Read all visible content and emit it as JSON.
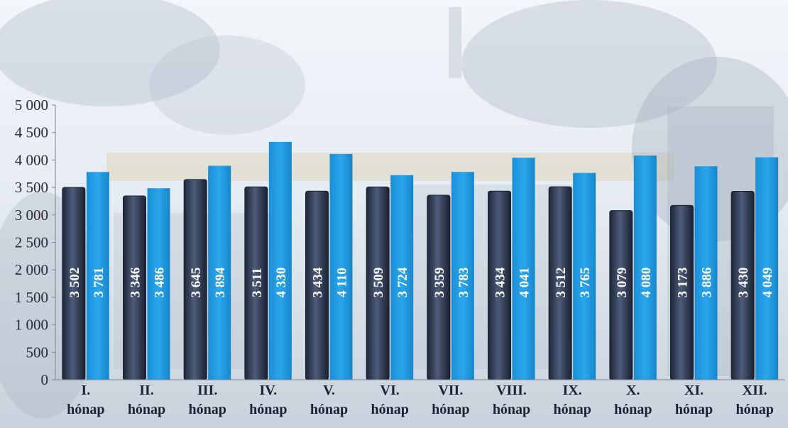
{
  "chart_data": {
    "type": "bar",
    "title": "",
    "xlabel": "",
    "ylabel": "",
    "ylim": [
      0,
      5000
    ],
    "y_ticks": [
      "0",
      "500",
      "1 000",
      "1 500",
      "2 000",
      "2 500",
      "3 000",
      "3 500",
      "4 000",
      "4 500",
      "5 000"
    ],
    "y_tick_values": [
      0,
      500,
      1000,
      1500,
      2000,
      2500,
      3000,
      3500,
      4000,
      4500,
      5000
    ],
    "categories": [
      [
        "I.",
        "hónap"
      ],
      [
        "II.",
        "hónap"
      ],
      [
        "III.",
        "hónap"
      ],
      [
        "IV.",
        "hónap"
      ],
      [
        "V.",
        "hónap"
      ],
      [
        "VI.",
        "hónap"
      ],
      [
        "VII.",
        "hónap"
      ],
      [
        "VIII.",
        "hónap"
      ],
      [
        "IX.",
        "hónap"
      ],
      [
        "X.",
        "hónap"
      ],
      [
        "XI.",
        "hónap"
      ],
      [
        "XII.",
        "hónap"
      ]
    ],
    "series": [
      {
        "color": "#3c4a66",
        "values": [
          3502,
          3346,
          3645,
          3511,
          3434,
          3509,
          3359,
          3434,
          3512,
          3079,
          3173,
          3430
        ],
        "labels": [
          "3 502",
          "3 346",
          "3 645",
          "3 511",
          "3 434",
          "3 509",
          "3 359",
          "3 434",
          "3 512",
          "3 079",
          "3 173",
          "3 430"
        ]
      },
      {
        "color": "#1f9be3",
        "values": [
          3781,
          3486,
          3894,
          4330,
          4110,
          3724,
          3783,
          4041,
          3765,
          4080,
          3886,
          4049
        ],
        "labels": [
          "3 781",
          "3 486",
          "3 894",
          "4 330",
          "4 110",
          "3 724",
          "3 783",
          "4 041",
          "3 765",
          "4 080",
          "3 886",
          "4 049"
        ]
      }
    ],
    "grid": false,
    "legend": "none",
    "background": "faded photo of trees and buildings"
  }
}
